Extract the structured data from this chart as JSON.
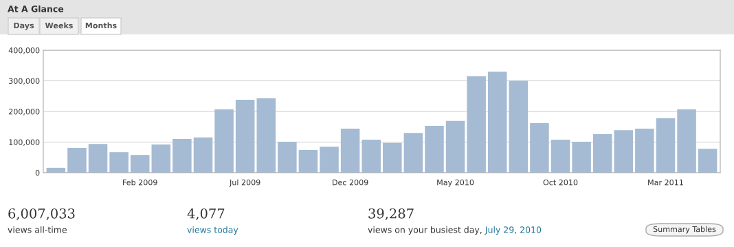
{
  "chart_data": {
    "type": "bar",
    "title": "At A Glance",
    "categories": [
      null,
      null,
      null,
      null,
      "Feb 2009",
      null,
      null,
      null,
      null,
      "Jul 2009",
      null,
      null,
      null,
      null,
      "Dec 2009",
      null,
      null,
      null,
      null,
      "May 2010",
      null,
      null,
      null,
      null,
      "Oct 2010",
      null,
      null,
      null,
      null,
      "Mar 2011",
      null,
      null
    ],
    "values": [
      16000,
      81000,
      94000,
      67000,
      58000,
      92000,
      110000,
      115000,
      207000,
      238000,
      243000,
      101000,
      74000,
      85000,
      144000,
      108000,
      97000,
      130000,
      153000,
      169000,
      315000,
      330000,
      301000,
      162000,
      108000,
      101000,
      126000,
      139000,
      144000,
      178000,
      207000,
      78000
    ],
    "color": "#a5bbd3",
    "ylim": [
      0,
      400000
    ],
    "yticks": [
      0,
      {
        "value": 100000,
        "label": "100,000"
      },
      {
        "value": 200000,
        "label": "200,000"
      },
      {
        "value": 300000,
        "label": "300,000"
      },
      {
        "value": 400000,
        "label": "400,000"
      }
    ],
    "grid": "y",
    "annotations": [
      "Days",
      "Weeks",
      "Months",
      "6,007,033",
      "views all-time",
      "4,077",
      "views today",
      "39,287",
      "views on your busiest day, ",
      "July 29, 2010",
      "Summary Tables"
    ]
  }
}
